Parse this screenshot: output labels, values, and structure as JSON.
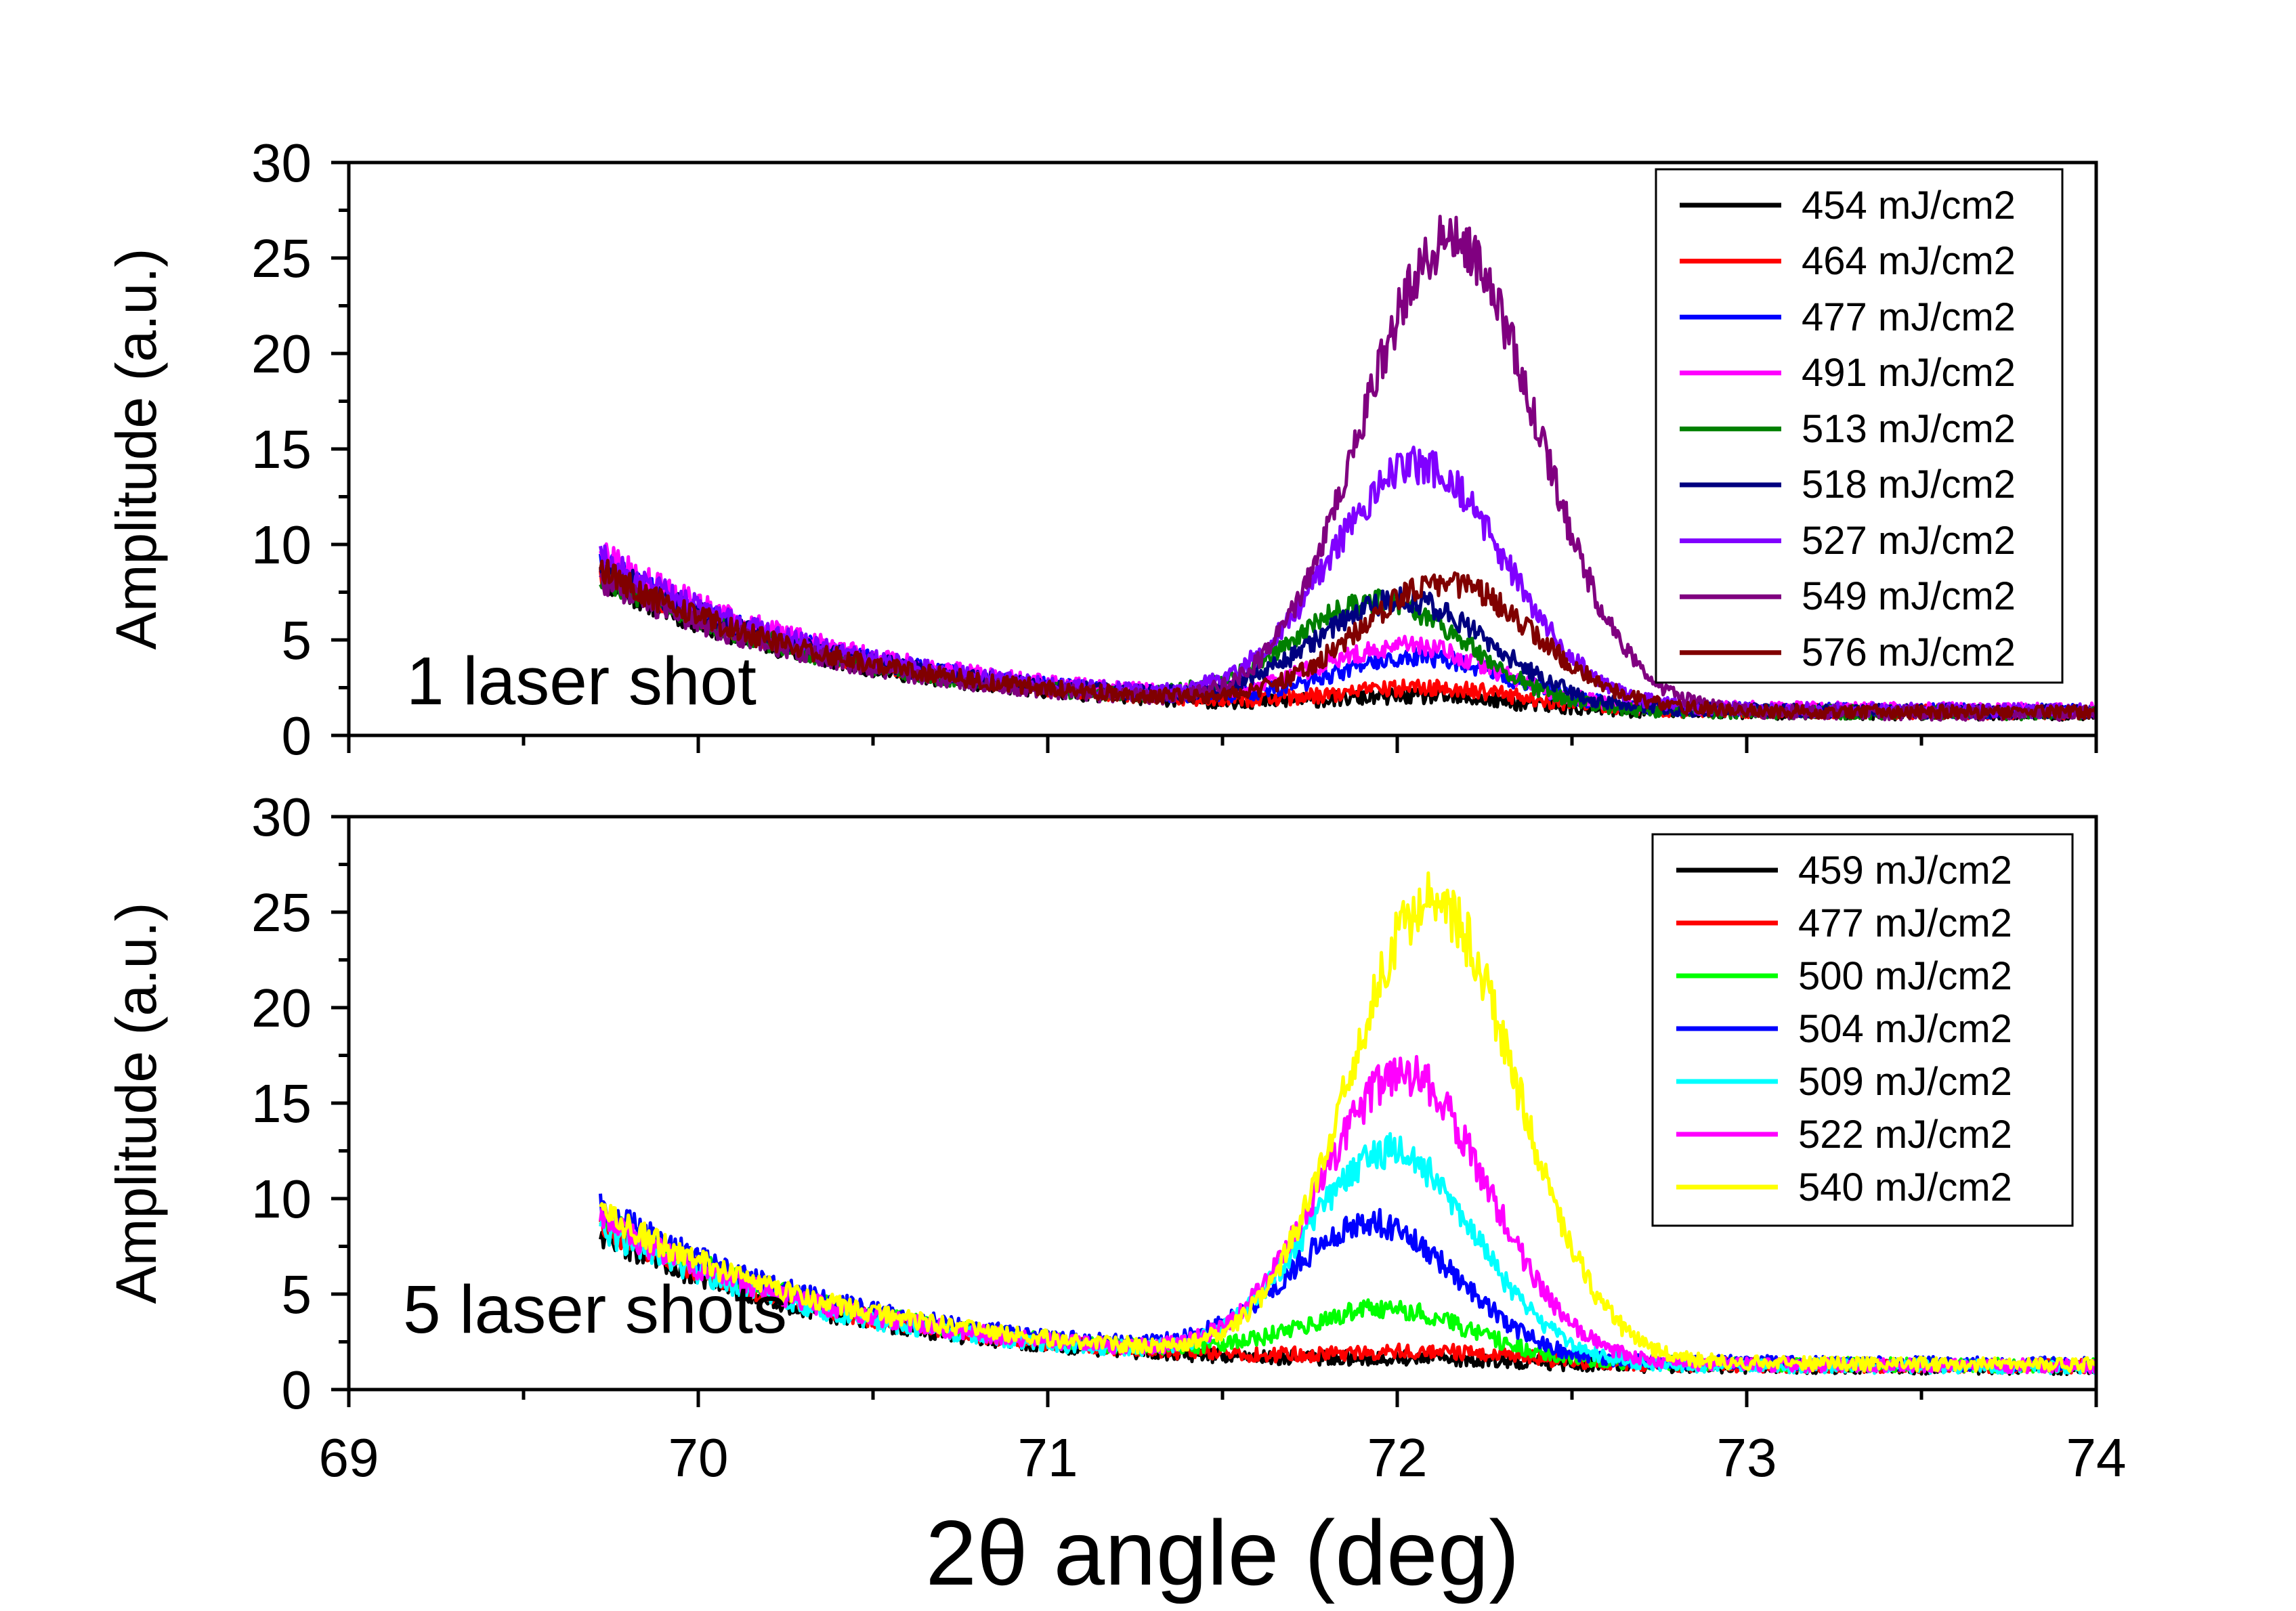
{
  "chart_data": [
    {
      "type": "line",
      "panel_label": "1 laser shot",
      "ylabel": "Amplitude (a.u.)",
      "xlabel": "",
      "xlim": [
        69,
        74
      ],
      "ylim": [
        0,
        30
      ],
      "xticks": [
        "69",
        "70",
        "71",
        "72",
        "73",
        "74"
      ],
      "yticks": [
        "0",
        "5",
        "10",
        "15",
        "20",
        "25",
        "30"
      ],
      "legend_position": "top-right",
      "series": [
        {
          "name": "454 mJ/cm2",
          "color": "#000000",
          "peak_x": 72.1,
          "peak_height": 0.6
        },
        {
          "name": "464 mJ/cm2",
          "color": "#ff0000",
          "peak_x": 72.1,
          "peak_height": 1.0
        },
        {
          "name": "477 mJ/cm2",
          "color": "#0000ff",
          "peak_x": 72.05,
          "peak_height": 2.5
        },
        {
          "name": "491 mJ/cm2",
          "color": "#ff00ff",
          "peak_x": 72.05,
          "peak_height": 3.0
        },
        {
          "name": "513 mJ/cm2",
          "color": "#008000",
          "peak_x": 71.95,
          "peak_height": 5.5
        },
        {
          "name": "518 mJ/cm2",
          "color": "#000080",
          "peak_x": 72.0,
          "peak_height": 5.5
        },
        {
          "name": "527 mJ/cm2",
          "color": "#8000ff",
          "peak_x": 72.08,
          "peak_height": 12.5
        },
        {
          "name": "549 mJ/cm2",
          "color": "#800080",
          "peak_x": 72.15,
          "peak_height": 24.5
        },
        {
          "name": "576 mJ/cm2",
          "color": "#800000",
          "peak_x": 72.12,
          "peak_height": 6.5
        }
      ]
    },
    {
      "type": "line",
      "panel_label": "5 laser shots",
      "ylabel": "Amplitude (a.u.)",
      "xlabel": "2θ angle (deg)",
      "xlim": [
        69,
        74
      ],
      "ylim": [
        0,
        30
      ],
      "xticks": [
        "69",
        "70",
        "71",
        "72",
        "73",
        "74"
      ],
      "yticks": [
        "0",
        "5",
        "10",
        "15",
        "20",
        "25",
        "30"
      ],
      "legend_position": "top-right",
      "series": [
        {
          "name": "459 mJ/cm2",
          "color": "#000000",
          "peak_x": 72.1,
          "peak_height": 0.2
        },
        {
          "name": "477 mJ/cm2",
          "color": "#ff0000",
          "peak_x": 72.1,
          "peak_height": 0.5
        },
        {
          "name": "500 mJ/cm2",
          "color": "#00ff00",
          "peak_x": 71.95,
          "peak_height": 2.6
        },
        {
          "name": "504 mJ/cm2",
          "color": "#0000ff",
          "peak_x": 71.95,
          "peak_height": 7.0
        },
        {
          "name": "509 mJ/cm2",
          "color": "#00ffff",
          "peak_x": 71.98,
          "peak_height": 11.0
        },
        {
          "name": "522 mJ/cm2",
          "color": "#ff00ff",
          "peak_x": 72.0,
          "peak_height": 15.0
        },
        {
          "name": "540 mJ/cm2",
          "color": "#ffff00",
          "peak_x": 72.12,
          "peak_height": 24.0
        }
      ]
    }
  ]
}
